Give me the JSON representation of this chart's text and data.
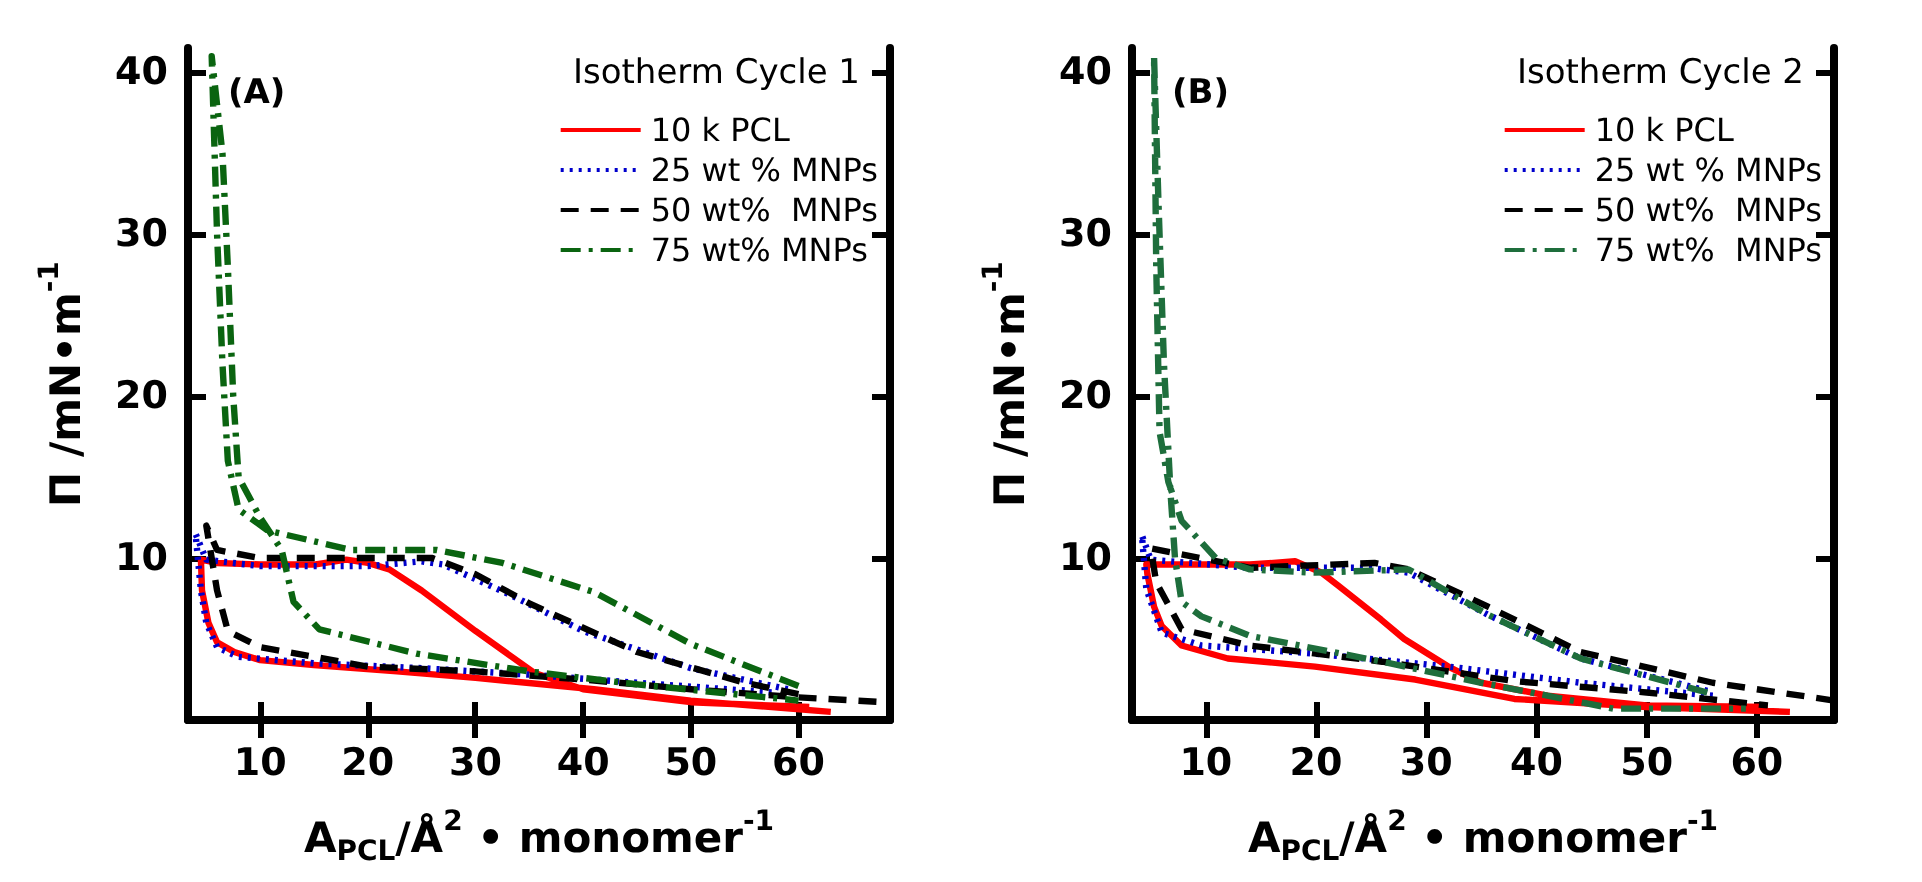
{
  "chart_data": [
    {
      "type": "line",
      "annotations": [
        "(A)"
      ],
      "legend_title": "Isotherm Cycle 1",
      "xlabel": "A$_{PCL}$/Å$^{2}$ • monomer$^{-1}$",
      "ylabel": "Π /mN•m$^{-1}$",
      "xlim": [
        3.3,
        68.5
      ],
      "ylim": [
        0,
        41.5
      ],
      "xticks": [
        10,
        20,
        30,
        40,
        50,
        60
      ],
      "yticks": [
        10,
        20,
        30,
        40
      ],
      "grid": false,
      "legend": "top right",
      "series": [
        {
          "name": "10 k PCL",
          "color": "#ff0000",
          "line_style": "solid",
          "x": [
            61,
            50,
            40,
            35.5,
            30,
            25,
            22,
            20,
            18,
            15,
            10,
            6,
            4.5,
            4.6,
            5.2,
            6,
            7.6,
            10,
            15,
            22.7,
            30,
            41,
            50,
            63
          ],
          "values": [
            0.8,
            1.1,
            1.9,
            2.9,
            5.5,
            8,
            9.3,
            9.7,
            9.9,
            9.6,
            9.6,
            9.7,
            9.9,
            8,
            6,
            4.8,
            4.2,
            3.7,
            3.4,
            3.0,
            2.6,
            1.9,
            1.2,
            0.5
          ]
        },
        {
          "name": "25 wt % MNPs",
          "color": "#0000cc",
          "line_style": "dotted",
          "x": [
            59,
            50,
            40,
            33,
            30,
            27,
            25,
            20,
            10,
            5,
            4,
            4.5,
            5,
            6,
            8,
            15,
            25,
            35,
            45,
            57.6
          ],
          "values": [
            1.9,
            3.2,
            5.5,
            7.8,
            8.7,
            9.6,
            9.8,
            9.5,
            9.5,
            9.9,
            11.5,
            8,
            6,
            4.5,
            3.9,
            3.5,
            3.2,
            2.8,
            2.3,
            1.7
          ]
        },
        {
          "name": "50 wt%  MNPs",
          "color": "#000000",
          "line_style": "dashed",
          "x": [
            60,
            55,
            45,
            35,
            30,
            26,
            20,
            10,
            6,
            5,
            6,
            7,
            10,
            20,
            30,
            40,
            50,
            60,
            68
          ],
          "values": [
            1.6,
            2.3,
            4.2,
            7.2,
            9,
            10,
            10,
            10,
            10.5,
            12,
            8,
            5.5,
            4.5,
            3.3,
            3,
            2.5,
            1.9,
            1.4,
            1.1
          ]
        },
        {
          "name": "75 wt% MNPs",
          "color": "#0a6410",
          "line_style": "dashdot",
          "x": [
            60,
            50,
            41,
            32.5,
            26.4,
            18.5,
            10.7,
            8,
            7,
            6.5,
            6,
            5.5,
            6.5,
            7,
            7.5,
            8,
            10,
            12,
            13.1,
            15.5,
            24.5,
            35,
            45,
            60
          ],
          "values": [
            2.1,
            4.7,
            7.9,
            9.7,
            10.5,
            10.5,
            11.7,
            13,
            16,
            22,
            30,
            41,
            35,
            28,
            20,
            15,
            12.5,
            10.5,
            7.3,
            5.6,
            4.1,
            3.0,
            2.2,
            1.2
          ]
        }
      ]
    },
    {
      "type": "line",
      "annotations": [
        "(B)"
      ],
      "legend_title": "Isotherm Cycle 2",
      "xlabel": "A$_{PCL}$/Å$^{2}$ • monomer$^{-1}$",
      "ylabel": "Π /mN•m$^{-1}$",
      "xlim": [
        3.3,
        67
      ],
      "ylim": [
        0,
        41.5
      ],
      "xticks": [
        10,
        20,
        30,
        40,
        50,
        60
      ],
      "yticks": [
        10,
        20,
        30,
        40
      ],
      "grid": false,
      "legend": "top right",
      "series": [
        {
          "name": "10 k PCL",
          "color": "#ff0000",
          "line_style": "solid",
          "x": [
            61,
            50,
            41,
            35,
            32,
            28,
            25.9,
            22,
            20.5,
            18.1,
            14,
            8,
            4.6,
            4.7,
            5.3,
            6,
            7.8,
            12,
            19.9,
            29,
            38,
            50,
            63
          ],
          "values": [
            0.8,
            0.9,
            1.5,
            2.3,
            3.3,
            5,
            6.2,
            8.3,
            9.1,
            9.8,
            9.6,
            9.6,
            9.6,
            9,
            7,
            5.8,
            4.6,
            3.8,
            3.3,
            2.5,
            1.3,
            0.8,
            0.5
          ]
        },
        {
          "name": "25 wt % MNPs",
          "color": "#0000cc",
          "line_style": "dotted",
          "x": [
            55.5,
            44,
            35.6,
            28.4,
            24.8,
            14,
            5,
            4.2,
            4.6,
            6,
            9.6,
            19.9,
            32,
            44,
            56
          ],
          "values": [
            1.8,
            3.8,
            6.5,
            9.1,
            9.4,
            9.4,
            9.9,
            11.4,
            8.1,
            5.4,
            4.6,
            4.1,
            3.3,
            2.3,
            1.5
          ]
        },
        {
          "name": "50 wt%  MNPs",
          "color": "#000000",
          "line_style": "dashed",
          "x": [
            67,
            56,
            44,
            35.6,
            28.4,
            25.3,
            14,
            5,
            5.5,
            7.8,
            14,
            26,
            38,
            50,
            61
          ],
          "values": [
            1.2,
            2.3,
            4.2,
            7,
            9.3,
            9.7,
            9.4,
            10.6,
            8.5,
            5.6,
            4.6,
            3.6,
            2.4,
            1.7,
            0.9
          ]
        },
        {
          "name": "75 wt%  MNPs",
          "color": "#1e6e3c",
          "line_style": "dashdot",
          "x": [
            55.5,
            44,
            35.6,
            28.4,
            19.9,
            14,
            10.9,
            7.8,
            6.6,
            5.8,
            5.5,
            5.3,
            5.7,
            6.2,
            6.8,
            7.2,
            7.8,
            9.6,
            14,
            26,
            35,
            47,
            59
          ],
          "values": [
            1.7,
            3.8,
            6.5,
            9.3,
            9.1,
            9.3,
            10,
            12.3,
            14.7,
            17.8,
            28,
            41,
            32,
            22,
            14,
            10,
            7.3,
            6.4,
            5.2,
            3.6,
            2.3,
            0.7,
            0.7
          ]
        }
      ]
    }
  ]
}
